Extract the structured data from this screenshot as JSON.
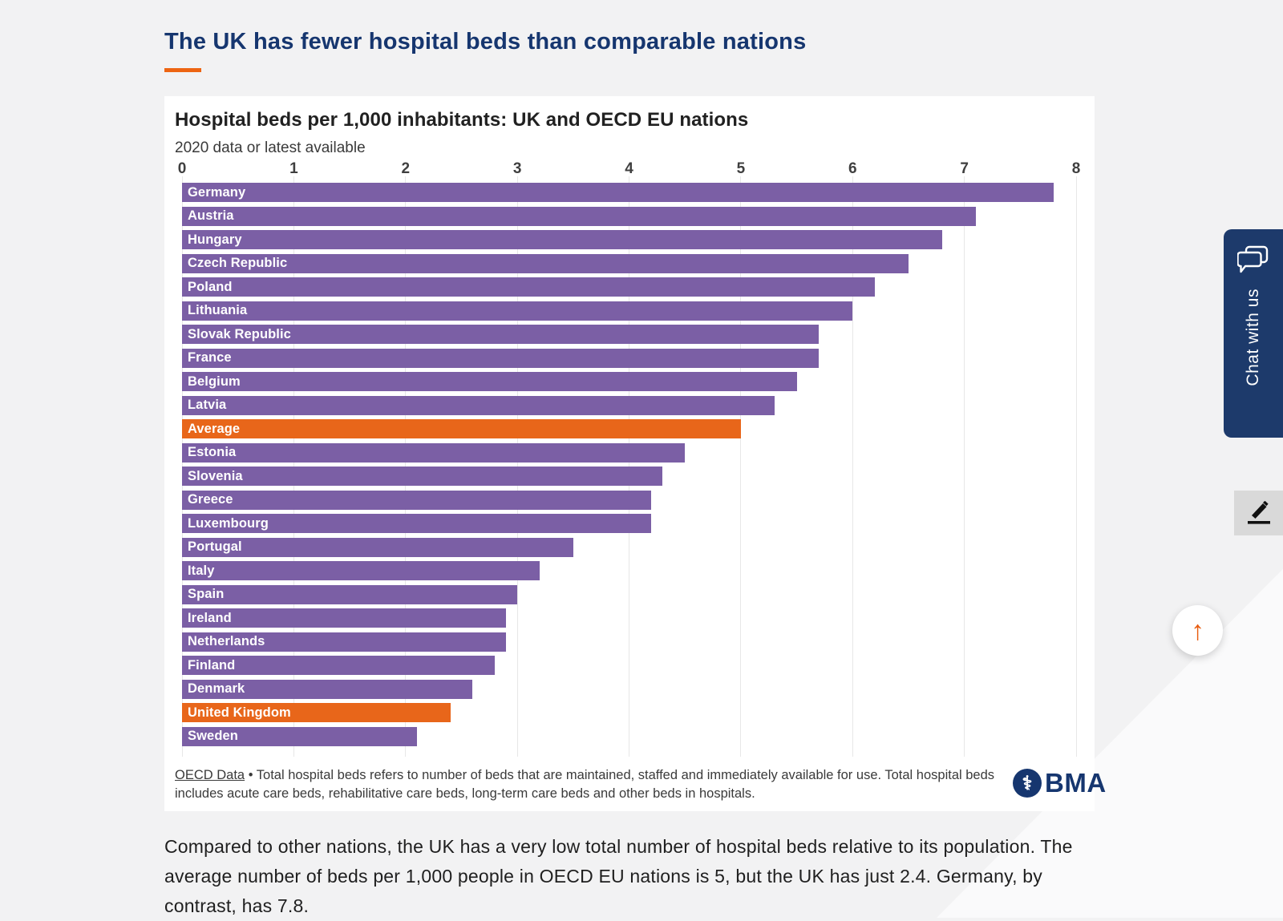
{
  "page": {
    "title": "The UK has fewer hospital beds than comparable nations",
    "body_paragraph": "Compared to other nations, the UK has a very low total number of hospital beds relative to its population. The average number of beds per 1,000 people in OECD EU nations is 5, but the UK has just 2.4. Germany, by contrast, has 7.8."
  },
  "chart": {
    "title": "Hospital beds per 1,000 inhabitants: UK and OECD EU nations",
    "subtitle": "2020 data or latest available",
    "footnote_link": "OECD Data",
    "footnote_text": "• Total hospital beds refers to number of beds that are maintained, staffed and immediately available for use. Total hospital beds includes acute care beds, rehabilitative care beds, long-term care beds and other beds in hospitals.",
    "logo_icon": "caduceus-icon",
    "logo_text": "BMA"
  },
  "chart_data": {
    "type": "bar",
    "orientation": "horizontal",
    "title": "Hospital beds per 1,000 inhabitants: UK and OECD EU nations",
    "subtitle": "2020 data or latest available",
    "xlabel": "",
    "ylabel": "",
    "xlim": [
      0,
      8
    ],
    "x_ticks": [
      0,
      1,
      2,
      3,
      4,
      5,
      6,
      7,
      8
    ],
    "grid": true,
    "legend": false,
    "categories": [
      "Germany",
      "Austria",
      "Hungary",
      "Czech Republic",
      "Poland",
      "Lithuania",
      "Slovak Republic",
      "France",
      "Belgium",
      "Latvia",
      "Average",
      "Estonia",
      "Slovenia",
      "Greece",
      "Luxembourg",
      "Portugal",
      "Italy",
      "Spain",
      "Ireland",
      "Netherlands",
      "Finland",
      "Denmark",
      "United Kingdom",
      "Sweden"
    ],
    "values": [
      7.8,
      7.1,
      6.8,
      6.5,
      6.2,
      6.0,
      5.7,
      5.7,
      5.5,
      5.3,
      5.0,
      4.5,
      4.3,
      4.2,
      4.2,
      3.5,
      3.2,
      3.0,
      2.9,
      2.9,
      2.8,
      2.6,
      2.4,
      2.1
    ],
    "highlighted_categories": [
      "Average",
      "United Kingdom"
    ],
    "bar_color": "#7b5fa5",
    "highlight_color": "#e8661a"
  },
  "side_widgets": {
    "chat_label": "Chat with us",
    "chat_icon": "chat-bubbles-icon",
    "annotate_icon": "pencil-icon",
    "scroll_top_icon": "up-arrow-icon",
    "up_arrow_glyph": "↑"
  },
  "colors": {
    "page_background": "#f2f2f3",
    "diagonal_background": "#fafafb",
    "heading_navy": "#16366f",
    "accent_orange": "#ed6412",
    "bar_purple": "#7b5fa5",
    "bar_orange": "#e8661a",
    "chat_tab_navy": "#1d3a6b",
    "card_white": "#ffffff"
  }
}
